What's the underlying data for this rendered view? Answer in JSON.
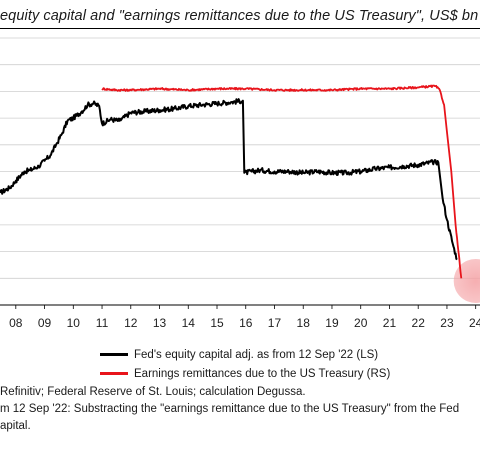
{
  "title": "equity capital and \"earnings remittances due to the US Treasury\", US$ bn",
  "legend": [
    {
      "label": "Fed's equity capital adj. as from 12 Sep '22 (LS)",
      "color": "#000000"
    },
    {
      "label": "Earnings remittances due to the US Treasury (RS)",
      "color": "#e8141b"
    }
  ],
  "footnotes": [
    "Refinitiv; Federal Reserve of St. Louis; calculation Degussa.",
    "m 12 Sep '22: Substracting the \"earnings remittance due to the US Treasury\" from the Fed",
    "apital."
  ],
  "chart_data": {
    "type": "line",
    "x_tick_labels": [
      "08",
      "09",
      "10",
      "11",
      "12",
      "13",
      "14",
      "15",
      "16",
      "17",
      "18",
      "19",
      "20",
      "21",
      "22",
      "23",
      "24"
    ],
    "xlim": [
      2007.45,
      2024.15
    ],
    "ylim": [
      0,
      10
    ],
    "y_gridlines": [
      1,
      2,
      3,
      4,
      5,
      6,
      7,
      8,
      9,
      10
    ],
    "grid": "horizontal",
    "highlight": {
      "x": 2024.0,
      "y": 0.9,
      "color": "#f4a0a3"
    },
    "series": [
      {
        "name": "Fed's equity capital adj. as from 12 Sep '22 (LS)",
        "color": "#000000",
        "points": [
          [
            2007.45,
            4.2
          ],
          [
            2007.8,
            4.4
          ],
          [
            2008.0,
            4.65
          ],
          [
            2008.3,
            5.0
          ],
          [
            2008.5,
            5.05
          ],
          [
            2008.8,
            5.2
          ],
          [
            2009.0,
            5.4
          ],
          [
            2009.2,
            5.6
          ],
          [
            2009.4,
            6.0
          ],
          [
            2009.6,
            6.4
          ],
          [
            2009.8,
            6.9
          ],
          [
            2010.0,
            7.0
          ],
          [
            2010.3,
            7.25
          ],
          [
            2010.5,
            7.5
          ],
          [
            2010.7,
            7.55
          ],
          [
            2010.9,
            7.45
          ],
          [
            2011.0,
            6.8
          ],
          [
            2011.3,
            6.95
          ],
          [
            2011.6,
            6.9
          ],
          [
            2012.0,
            7.2
          ],
          [
            2012.5,
            7.25
          ],
          [
            2013.0,
            7.3
          ],
          [
            2013.5,
            7.35
          ],
          [
            2014.0,
            7.45
          ],
          [
            2014.5,
            7.5
          ],
          [
            2015.0,
            7.55
          ],
          [
            2015.5,
            7.6
          ],
          [
            2015.9,
            7.65
          ],
          [
            2015.95,
            4.95
          ],
          [
            2016.5,
            5.05
          ],
          [
            2017.0,
            5.0
          ],
          [
            2017.5,
            5.0
          ],
          [
            2018.0,
            4.95
          ],
          [
            2018.5,
            5.0
          ],
          [
            2019.0,
            4.95
          ],
          [
            2019.5,
            4.95
          ],
          [
            2020.0,
            5.0
          ],
          [
            2020.5,
            5.1
          ],
          [
            2021.0,
            5.15
          ],
          [
            2021.5,
            5.2
          ],
          [
            2022.0,
            5.25
          ],
          [
            2022.5,
            5.35
          ],
          [
            2022.7,
            5.35
          ],
          [
            2022.85,
            4.0
          ],
          [
            2023.0,
            3.2
          ],
          [
            2023.2,
            2.3
          ],
          [
            2023.35,
            1.7
          ]
        ]
      },
      {
        "name": "Earnings remittances due to the US Treasury (RS)",
        "color": "#e8141b",
        "points": [
          [
            2011.0,
            8.1
          ],
          [
            2011.5,
            8.05
          ],
          [
            2012.0,
            8.05
          ],
          [
            2013.0,
            8.1
          ],
          [
            2014.0,
            8.05
          ],
          [
            2015.0,
            8.1
          ],
          [
            2016.0,
            8.1
          ],
          [
            2017.0,
            8.05
          ],
          [
            2018.0,
            8.05
          ],
          [
            2019.0,
            8.05
          ],
          [
            2020.0,
            8.1
          ],
          [
            2021.0,
            8.1
          ],
          [
            2022.0,
            8.15
          ],
          [
            2022.6,
            8.2
          ],
          [
            2022.75,
            8.05
          ],
          [
            2022.9,
            7.5
          ],
          [
            2023.0,
            6.5
          ],
          [
            2023.15,
            5.0
          ],
          [
            2023.3,
            3.0
          ],
          [
            2023.5,
            1.0
          ]
        ]
      }
    ]
  }
}
